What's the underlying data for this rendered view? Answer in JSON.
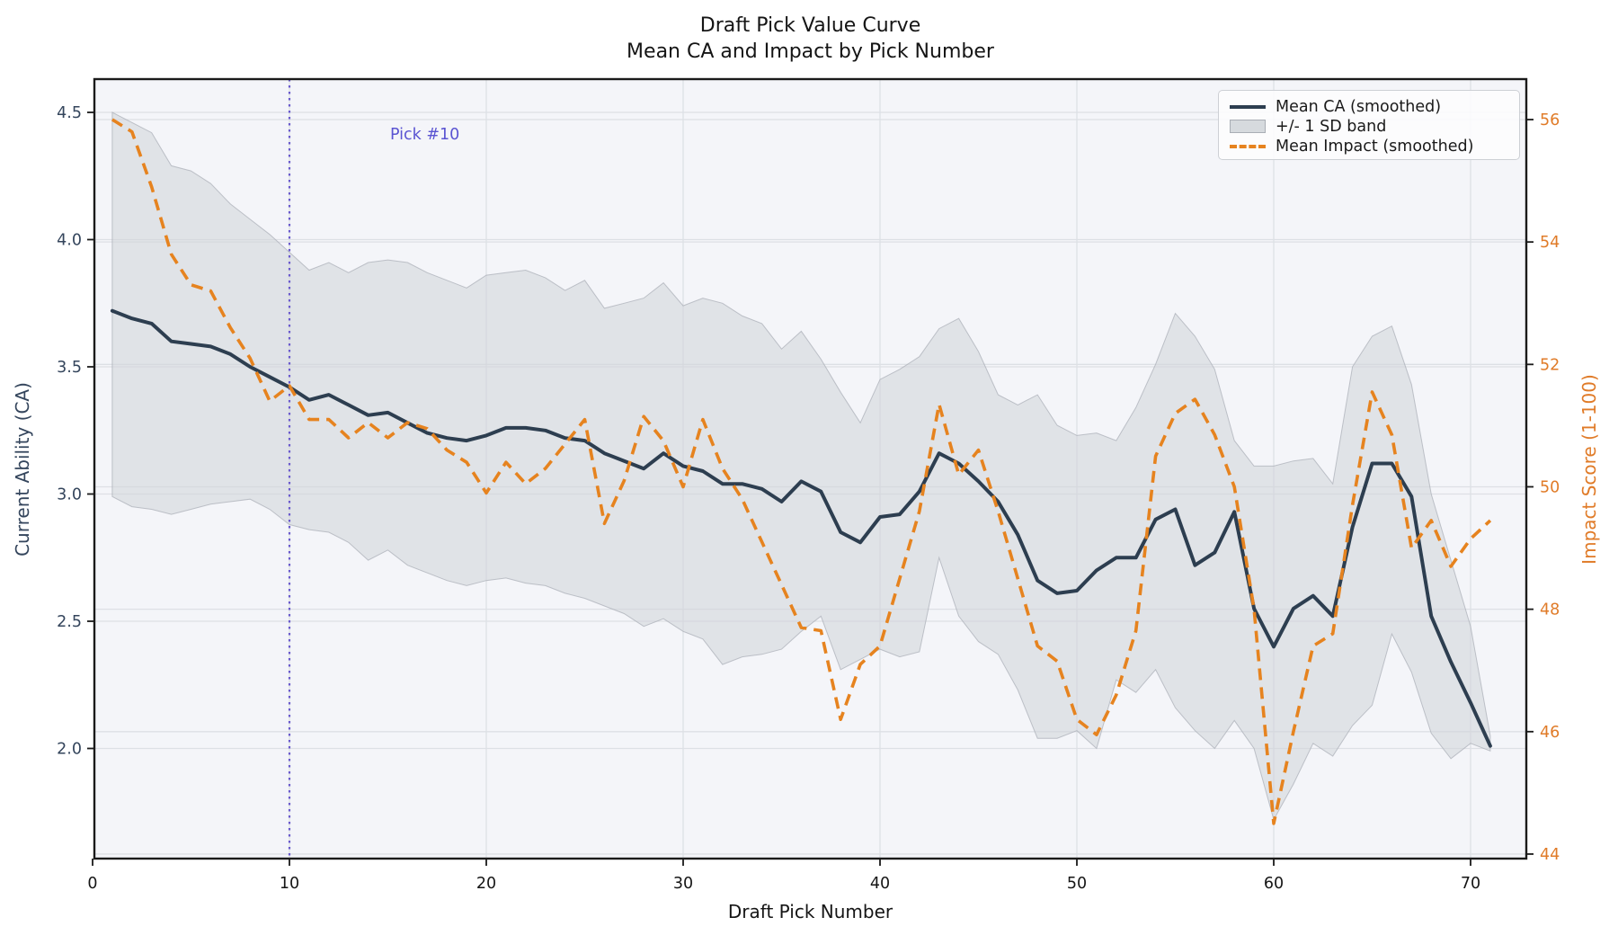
{
  "title": {
    "line1": "Draft Pick Value Curve",
    "line2": "Mean CA and Impact by Pick Number"
  },
  "axes": {
    "x": {
      "label": "Draft Pick Number",
      "ticks": [
        0,
        10,
        20,
        30,
        40,
        50,
        60,
        70
      ]
    },
    "y_left": {
      "label": "Current Ability (CA)",
      "ticks": [
        2.0,
        2.5,
        3.0,
        3.5,
        4.0,
        4.5
      ],
      "range": [
        1.57,
        4.63
      ],
      "color": "#34455c"
    },
    "y_right": {
      "label": "Impact Score (1-100)",
      "ticks": [
        44,
        46,
        48,
        50,
        52,
        54,
        56
      ],
      "range": [
        43.9,
        56.7
      ],
      "color": "#e07b28"
    }
  },
  "legend": {
    "items": [
      {
        "label": "Mean CA (smoothed)",
        "kind": "line",
        "color": "#2d3e50"
      },
      {
        "label": "+/- 1 SD band",
        "kind": "band",
        "color": "#d6dade"
      },
      {
        "label": "Mean Impact (smoothed)",
        "kind": "dash",
        "color": "#e6831f"
      }
    ]
  },
  "annotation": {
    "text": "Pick #10",
    "x_pick": 10,
    "color": "#5a54d2"
  },
  "colors": {
    "ca_line": "#2d3e50",
    "impact_line": "#e6831f",
    "band_fill": "#cfd3d8",
    "band_edge": "#a8adb5",
    "vline": "#6a5acd",
    "grid": "#dde0e5",
    "plot_bg": "#f4f5f9",
    "spine": "#1a1a1a",
    "tick_label_bottom": "#151515"
  },
  "chart_data": {
    "type": "line",
    "x": [
      1,
      2,
      3,
      4,
      5,
      6,
      7,
      8,
      9,
      10,
      11,
      12,
      13,
      14,
      15,
      16,
      17,
      18,
      19,
      20,
      21,
      22,
      23,
      24,
      25,
      26,
      27,
      28,
      29,
      30,
      31,
      32,
      33,
      34,
      35,
      36,
      37,
      38,
      39,
      40,
      41,
      42,
      43,
      44,
      45,
      46,
      47,
      48,
      49,
      50,
      51,
      52,
      53,
      54,
      55,
      56,
      57,
      58,
      59,
      60,
      61,
      62,
      63,
      64,
      65,
      66,
      67,
      68,
      69,
      70,
      71
    ],
    "series": [
      {
        "name": "Mean CA (smoothed)",
        "axis": "left",
        "style": "solid",
        "values": [
          3.72,
          3.69,
          3.67,
          3.6,
          3.59,
          3.58,
          3.55,
          3.5,
          3.46,
          3.42,
          3.37,
          3.39,
          3.35,
          3.31,
          3.32,
          3.28,
          3.24,
          3.22,
          3.21,
          3.23,
          3.26,
          3.26,
          3.25,
          3.22,
          3.21,
          3.16,
          3.13,
          3.1,
          3.16,
          3.11,
          3.09,
          3.04,
          3.04,
          3.02,
          2.97,
          3.05,
          3.01,
          2.85,
          2.81,
          2.91,
          2.92,
          3.01,
          3.16,
          3.12,
          3.05,
          2.97,
          2.84,
          2.66,
          2.61,
          2.62,
          2.7,
          2.75,
          2.75,
          2.9,
          2.94,
          2.72,
          2.77,
          2.93,
          2.55,
          2.4,
          2.55,
          2.6,
          2.52,
          2.87,
          3.12,
          3.12,
          2.99,
          2.52,
          2.34,
          2.18,
          2.01
        ]
      },
      {
        "name": "Mean Impact (smoothed)",
        "axis": "right",
        "style": "dashed",
        "values": [
          56.0,
          55.8,
          54.9,
          53.8,
          53.3,
          53.2,
          52.6,
          52.1,
          51.4,
          51.65,
          51.1,
          51.1,
          50.8,
          51.05,
          50.8,
          51.05,
          50.95,
          50.6,
          50.4,
          49.9,
          50.4,
          50.05,
          50.3,
          50.7,
          51.1,
          49.4,
          50.1,
          51.15,
          50.75,
          50.0,
          51.1,
          50.3,
          49.8,
          49.1,
          48.4,
          47.7,
          47.65,
          46.2,
          47.1,
          47.4,
          48.5,
          49.6,
          51.35,
          50.2,
          50.6,
          49.6,
          48.5,
          47.4,
          47.15,
          46.2,
          45.95,
          46.6,
          47.65,
          50.5,
          51.2,
          51.43,
          50.85,
          50.0,
          48.0,
          44.5,
          46.0,
          47.4,
          47.6,
          49.7,
          51.55,
          50.85,
          49.0,
          49.45,
          48.7,
          49.15,
          49.45
        ]
      },
      {
        "name": "+1 SD (band upper)",
        "axis": "left",
        "style": "band-upper",
        "values": [
          4.5,
          4.46,
          4.42,
          4.29,
          4.27,
          4.22,
          4.14,
          4.08,
          4.02,
          3.95,
          3.88,
          3.91,
          3.87,
          3.91,
          3.92,
          3.91,
          3.87,
          3.84,
          3.81,
          3.86,
          3.87,
          3.88,
          3.85,
          3.8,
          3.84,
          3.73,
          3.75,
          3.77,
          3.83,
          3.74,
          3.77,
          3.75,
          3.7,
          3.67,
          3.57,
          3.64,
          3.53,
          3.4,
          3.28,
          3.45,
          3.49,
          3.54,
          3.65,
          3.69,
          3.56,
          3.39,
          3.35,
          3.39,
          3.27,
          3.23,
          3.24,
          3.21,
          3.34,
          3.51,
          3.71,
          3.62,
          3.49,
          3.21,
          3.11,
          3.11,
          3.13,
          3.14,
          3.04,
          3.5,
          3.62,
          3.66,
          3.43,
          3.0,
          2.74,
          2.48,
          2.05
        ]
      },
      {
        "name": "-1 SD (band lower)",
        "axis": "left",
        "style": "band-lower",
        "values": [
          2.99,
          2.95,
          2.94,
          2.92,
          2.94,
          2.96,
          2.97,
          2.98,
          2.94,
          2.88,
          2.86,
          2.85,
          2.81,
          2.74,
          2.78,
          2.72,
          2.69,
          2.66,
          2.64,
          2.66,
          2.67,
          2.65,
          2.64,
          2.61,
          2.59,
          2.56,
          2.53,
          2.48,
          2.51,
          2.46,
          2.43,
          2.33,
          2.36,
          2.37,
          2.39,
          2.46,
          2.52,
          2.31,
          2.35,
          2.39,
          2.36,
          2.38,
          2.75,
          2.52,
          2.42,
          2.37,
          2.23,
          2.04,
          2.04,
          2.07,
          2.0,
          2.27,
          2.22,
          2.31,
          2.16,
          2.07,
          2.0,
          2.11,
          2.0,
          1.72,
          1.86,
          2.02,
          1.97,
          2.09,
          2.17,
          2.45,
          2.3,
          2.06,
          1.96,
          2.02,
          1.99
        ]
      }
    ],
    "title": "Draft Pick Value Curve — Mean CA and Impact by Pick Number",
    "xlabel": "Draft Pick Number",
    "ylabel_left": "Current Ability (CA)",
    "ylabel_right": "Impact Score (1-100)",
    "grid": true,
    "legend_position": "upper right"
  }
}
